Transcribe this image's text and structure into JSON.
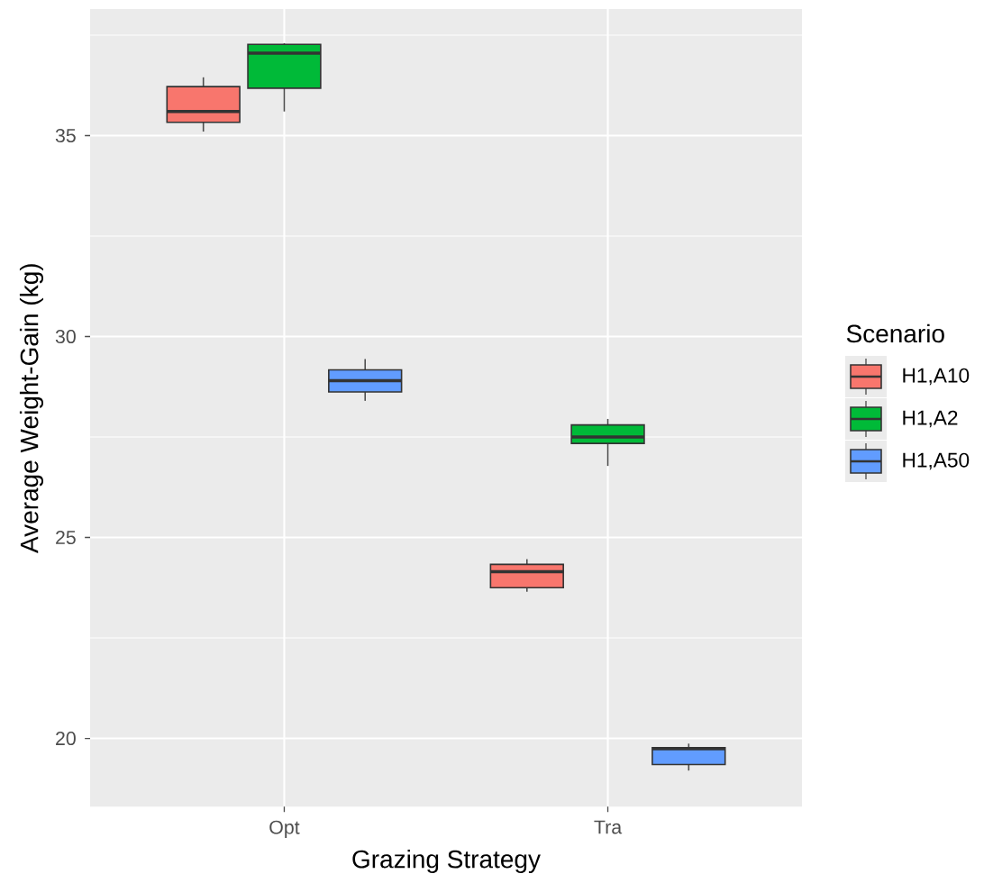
{
  "chart_data": {
    "type": "box",
    "xlabel": "Grazing Strategy",
    "ylabel": "Average Weight-Gain (kg)",
    "legend_title": "Scenario",
    "legend": "right",
    "grid": true,
    "categories": [
      "Opt",
      "Tra"
    ],
    "ylim": [
      18.3,
      38.15
    ],
    "yticks": [
      20,
      25,
      30,
      35,
      {
        "value": 22.5,
        "label": null
      },
      {
        "value": 27.5,
        "label": null
      },
      {
        "value": 32.5,
        "label": null
      },
      {
        "value": 37.5,
        "label": null
      }
    ],
    "series": [
      {
        "name": "H1,A10",
        "color": "#f8766d",
        "boxes": [
          {
            "low": 35.1,
            "q1": 35.33,
            "median": 35.6,
            "q3": 36.22,
            "high": 36.45
          },
          {
            "low": 23.65,
            "q1": 23.75,
            "median": 24.15,
            "q3": 24.33,
            "high": 24.46
          }
        ]
      },
      {
        "name": "H1,A2",
        "color": "#00ba38",
        "boxes": [
          {
            "low": 35.6,
            "q1": 36.18,
            "median": 37.05,
            "q3": 37.27,
            "high": 37.3
          },
          {
            "low": 26.78,
            "q1": 27.34,
            "median": 27.5,
            "q3": 27.8,
            "high": 27.95
          }
        ]
      },
      {
        "name": "H1,A50",
        "color": "#619cff",
        "boxes": [
          {
            "low": 28.4,
            "q1": 28.62,
            "median": 28.9,
            "q3": 29.17,
            "high": 29.44
          },
          {
            "low": 19.2,
            "q1": 19.35,
            "median": 19.74,
            "q3": 19.77,
            "high": 19.87
          }
        ]
      }
    ]
  }
}
